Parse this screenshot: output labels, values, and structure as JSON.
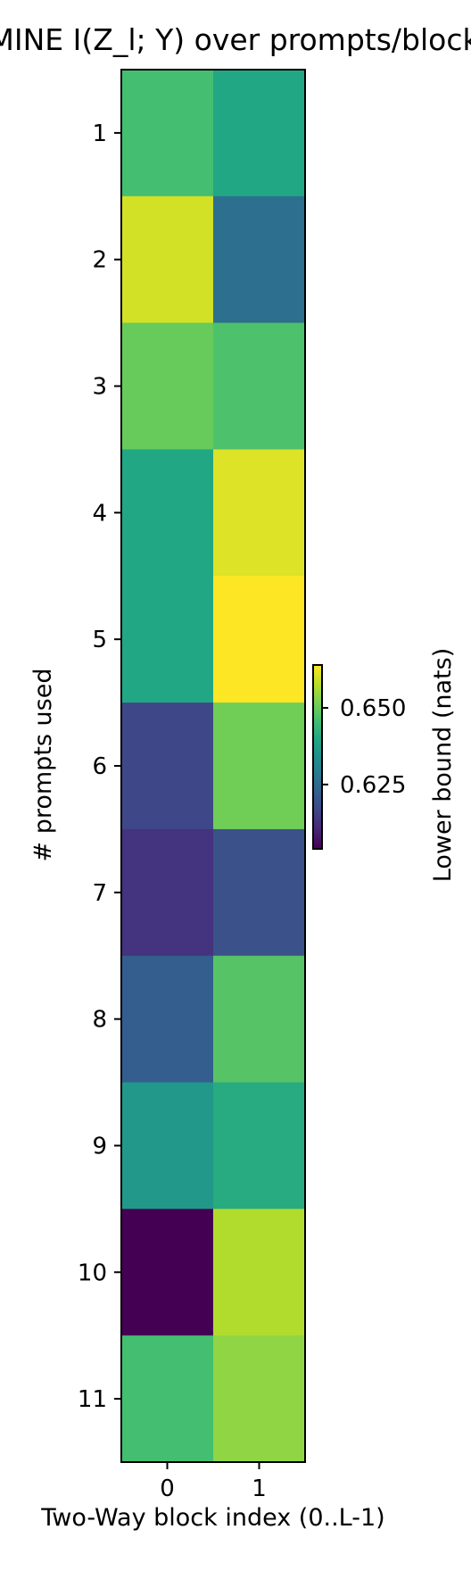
{
  "chart_data": {
    "type": "heatmap",
    "title": "NWJ/MINE  I(Z_l; Y) over prompts/blocks",
    "xlabel": "Two-Way block index (0..L-1)",
    "ylabel": "# prompts used",
    "x_ticks": [
      "0",
      "1"
    ],
    "y_ticks": [
      "1",
      "2",
      "3",
      "4",
      "5",
      "6",
      "7",
      "8",
      "9",
      "10",
      "11"
    ],
    "values": [
      [
        0.646,
        0.64
      ],
      [
        0.66,
        0.626
      ],
      [
        0.65,
        0.647
      ],
      [
        0.64,
        0.661
      ],
      [
        0.64,
        0.664
      ],
      [
        0.617,
        0.651
      ],
      [
        0.613,
        0.619
      ],
      [
        0.622,
        0.648
      ],
      [
        0.636,
        0.641
      ],
      [
        0.604,
        0.657
      ],
      [
        0.646,
        0.654
      ]
    ],
    "colorbar": {
      "label": "Lower bound (nats)",
      "min": 0.604,
      "max": 0.664,
      "ticks": [
        0.625,
        0.65
      ],
      "tick_labels": [
        "0.625",
        "0.650"
      ],
      "colormap": "viridis"
    },
    "grid": false
  }
}
